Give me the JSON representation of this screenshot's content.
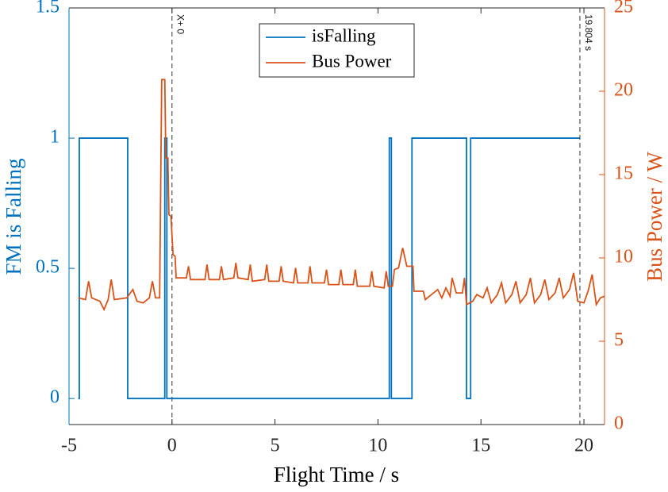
{
  "chart_data": {
    "type": "line",
    "xlabel": "Flight Time / s",
    "ylabel": "FM is Falling",
    "y2label": "Bus Power / W",
    "xlim": [
      -5,
      21
    ],
    "xticks": [
      -5,
      0,
      5,
      10,
      15,
      20
    ],
    "ylim": [
      -0.1,
      1.5
    ],
    "yticks": [
      0,
      0.5,
      1,
      1.5
    ],
    "y2lim": [
      0,
      25
    ],
    "y2ticks": [
      0,
      5,
      10,
      15,
      20,
      25
    ],
    "legend": "north",
    "annotations": [
      {
        "x": 0,
        "text": "X+ 0"
      },
      {
        "x": 19.804,
        "text": "19.804 s"
      }
    ],
    "series": [
      {
        "name": "isFalling",
        "color": "#0072BD",
        "x": [
          -4.55,
          -4.5,
          -4.5,
          -2.15,
          -2.15,
          -0.35,
          -0.35,
          -0.25,
          -0.25,
          10.55,
          10.55,
          10.65,
          10.65,
          11.65,
          11.65,
          14.3,
          14.3,
          14.5,
          14.5,
          19.8
        ],
        "values": [
          0,
          0,
          1,
          1,
          0,
          0,
          1,
          1,
          0,
          0,
          1,
          1,
          0,
          0,
          1,
          1,
          0,
          0,
          1,
          1
        ]
      },
      {
        "name": "Bus Power",
        "color": "#D95319",
        "axis": "y2",
        "x": [
          -4.55,
          -4.2,
          -4.05,
          -3.9,
          -3.5,
          -3.3,
          -3.1,
          -2.95,
          -2.8,
          -2.2,
          -1.9,
          -1.7,
          -1.4,
          -1.1,
          -0.95,
          -0.8,
          -0.6,
          -0.5,
          -0.35,
          -0.3,
          -0.2,
          -0.15,
          -0.05,
          0.05,
          0.15,
          0.2,
          0.7,
          0.8,
          0.9,
          1.6,
          1.7,
          1.8,
          2.3,
          2.4,
          2.5,
          3.0,
          3.1,
          3.2,
          3.7,
          3.8,
          3.9,
          4.5,
          4.6,
          4.7,
          5.2,
          5.3,
          5.4,
          5.9,
          6.0,
          6.1,
          6.6,
          6.7,
          6.8,
          7.4,
          7.5,
          7.6,
          8.1,
          8.2,
          8.3,
          8.8,
          8.9,
          9.0,
          9.6,
          9.7,
          9.8,
          10.3,
          10.4,
          10.5,
          10.7,
          10.8,
          11.0,
          11.2,
          11.4,
          11.7,
          11.75,
          12.2,
          12.3,
          12.6,
          12.9,
          13.1,
          13.3,
          13.5,
          13.6,
          13.8,
          14.1,
          14.2,
          14.3,
          14.6,
          14.8,
          15.1,
          15.3,
          15.5,
          15.8,
          16.0,
          16.2,
          16.5,
          16.7,
          16.9,
          17.2,
          17.4,
          17.6,
          17.9,
          18.1,
          18.3,
          18.6,
          18.8,
          19.0,
          19.3,
          19.5,
          19.7,
          20.0,
          20.2,
          20.4,
          20.6,
          20.8,
          21.0
        ],
        "values": [
          7.6,
          7.5,
          8.6,
          7.6,
          7.4,
          6.9,
          7.5,
          8.7,
          7.5,
          7.6,
          8.1,
          7.4,
          7.3,
          7.6,
          8.6,
          7.6,
          7.6,
          20.7,
          20.7,
          16,
          16,
          12.6,
          12.5,
          10.2,
          10.1,
          8.8,
          8.8,
          9.5,
          8.7,
          8.7,
          9.6,
          8.7,
          8.7,
          9.5,
          8.7,
          8.8,
          9.7,
          8.8,
          8.7,
          9.6,
          8.6,
          8.7,
          9.6,
          8.6,
          8.6,
          9.5,
          8.6,
          8.5,
          9.4,
          8.5,
          8.5,
          9.5,
          8.5,
          8.5,
          9.3,
          8.4,
          8.4,
          9.3,
          8.4,
          8.4,
          9.3,
          8.3,
          8.3,
          9.2,
          8.3,
          8.2,
          9.2,
          8.3,
          8.3,
          9.3,
          9.4,
          10.6,
          9.5,
          9.5,
          8.0,
          8.0,
          7.5,
          7.8,
          8.1,
          7.6,
          8.2,
          7.7,
          8.8,
          7.9,
          7.9,
          8.8,
          7.2,
          7.4,
          7.8,
          7.6,
          8.2,
          7.3,
          7.8,
          8.5,
          7.3,
          7.8,
          8.6,
          7.3,
          7.8,
          8.8,
          7.3,
          7.8,
          8.7,
          7.5,
          7.9,
          8.8,
          7.6,
          8.1,
          9.1,
          7.4,
          7.3,
          8.0,
          9.0,
          7.2,
          7.6,
          7.7
        ]
      }
    ]
  }
}
